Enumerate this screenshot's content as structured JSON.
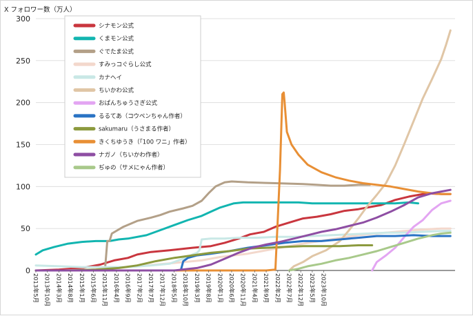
{
  "chart_data": {
    "type": "line",
    "ylabel": "X フォロワー数（万人）",
    "ylim": [
      0,
      300
    ],
    "yticks": [
      0,
      50,
      100,
      150,
      200,
      250,
      300
    ],
    "grid": "horizontal",
    "legend_position": "top-left",
    "x_tick_labels": [
      "2013年5月",
      "2013年10月",
      "2014年3月",
      "2014年8月",
      "2015年1月",
      "2015年6月",
      "2015年11月",
      "2016年4月",
      "2016年9月",
      "2017年2月",
      "2017年7月",
      "2017年12月",
      "2018年5月",
      "2018年10月",
      "2019年3月",
      "2019年8月",
      "2020年1月",
      "2020年6月",
      "2020年11月",
      "2021年4月",
      "2021年9月",
      "2022年2月",
      "2022年7月",
      "2022年12月",
      "2023年5月",
      "2023年10月"
    ],
    "x_start": "2013-05",
    "series": [
      {
        "name": "シナモン公式",
        "color": "#c9363e",
        "points": [
          [
            0,
            0
          ],
          [
            10,
            1
          ],
          [
            20,
            3
          ],
          [
            28,
            7
          ],
          [
            34,
            12
          ],
          [
            40,
            15
          ],
          [
            44,
            19
          ],
          [
            50,
            22
          ],
          [
            58,
            24
          ],
          [
            68,
            27
          ],
          [
            76,
            29
          ],
          [
            82,
            33
          ],
          [
            88,
            38
          ],
          [
            93,
            43
          ],
          [
            99,
            46
          ],
          [
            104,
            52
          ],
          [
            110,
            57
          ],
          [
            116,
            62
          ],
          [
            122,
            64
          ],
          [
            128,
            67
          ],
          [
            134,
            71
          ],
          [
            140,
            73
          ],
          [
            146,
            76
          ],
          [
            150,
            78
          ],
          [
            156,
            84
          ],
          [
            162,
            88
          ],
          [
            166,
            90
          ],
          [
            170,
            92
          ],
          [
            176,
            91
          ],
          [
            180,
            91
          ]
        ]
      },
      {
        "name": "くまモン公式",
        "color": "#12b5b0",
        "points": [
          [
            0,
            19
          ],
          [
            3,
            24
          ],
          [
            8,
            28
          ],
          [
            14,
            32
          ],
          [
            20,
            34
          ],
          [
            26,
            35
          ],
          [
            32,
            35
          ],
          [
            36,
            37
          ],
          [
            40,
            38
          ],
          [
            48,
            42
          ],
          [
            54,
            48
          ],
          [
            60,
            54
          ],
          [
            66,
            60
          ],
          [
            72,
            65
          ],
          [
            76,
            70
          ],
          [
            80,
            75
          ],
          [
            86,
            80
          ],
          [
            90,
            81
          ],
          [
            96,
            81
          ],
          [
            102,
            81
          ],
          [
            108,
            81
          ],
          [
            114,
            81
          ],
          [
            120,
            80
          ],
          [
            126,
            80
          ],
          [
            132,
            80
          ],
          [
            138,
            80
          ],
          [
            144,
            80
          ],
          [
            150,
            80
          ],
          [
            156,
            80
          ],
          [
            162,
            81
          ],
          [
            166,
            80
          ]
        ]
      },
      {
        "name": "ぐでたま公式",
        "color": "#b3a088",
        "points": [
          [
            30,
            0
          ],
          [
            31,
            35
          ],
          [
            32,
            35
          ],
          [
            33,
            44
          ],
          [
            38,
            52
          ],
          [
            44,
            59
          ],
          [
            50,
            63
          ],
          [
            54,
            66
          ],
          [
            58,
            70
          ],
          [
            64,
            74
          ],
          [
            68,
            77
          ],
          [
            72,
            83
          ],
          [
            75,
            92
          ],
          [
            78,
            100
          ],
          [
            82,
            105
          ],
          [
            85,
            106
          ],
          [
            92,
            105
          ],
          [
            104,
            104
          ],
          [
            116,
            103
          ],
          [
            122,
            102
          ],
          [
            128,
            101
          ],
          [
            134,
            101
          ],
          [
            140,
            102
          ],
          [
            145,
            102
          ]
        ]
      },
      {
        "name": "すみっコぐらし公式",
        "color": "#f3d8cc",
        "points": [
          [
            0,
            0
          ],
          [
            12,
            0
          ],
          [
            24,
            1
          ],
          [
            36,
            3
          ],
          [
            48,
            6
          ],
          [
            60,
            9
          ],
          [
            72,
            12
          ],
          [
            80,
            16
          ],
          [
            92,
            20
          ],
          [
            104,
            26
          ],
          [
            116,
            32
          ],
          [
            128,
            37
          ],
          [
            140,
            42
          ],
          [
            152,
            45
          ],
          [
            164,
            48
          ],
          [
            176,
            50
          ],
          [
            180,
            50
          ]
        ]
      },
      {
        "name": "カナヘイ",
        "color": "#c9e8e6",
        "points": [
          [
            0,
            6
          ],
          [
            10,
            5
          ],
          [
            20,
            4
          ],
          [
            30,
            4
          ],
          [
            40,
            4
          ],
          [
            50,
            6
          ],
          [
            58,
            8
          ],
          [
            62,
            12
          ],
          [
            66,
            16
          ],
          [
            68,
            19
          ],
          [
            70,
            21
          ],
          [
            71,
            24
          ],
          [
            72,
            37
          ],
          [
            76,
            38
          ],
          [
            82,
            38
          ],
          [
            88,
            39
          ],
          [
            96,
            39
          ],
          [
            104,
            40
          ],
          [
            112,
            40
          ],
          [
            120,
            41
          ],
          [
            128,
            42
          ],
          [
            136,
            43
          ],
          [
            144,
            44
          ],
          [
            152,
            45
          ],
          [
            160,
            45
          ],
          [
            168,
            46
          ],
          [
            176,
            47
          ],
          [
            180,
            47
          ]
        ]
      },
      {
        "name": "ちいかわ公式",
        "color": "#e0c6a6",
        "points": [
          [
            110,
            0
          ],
          [
            112,
            5
          ],
          [
            116,
            10
          ],
          [
            120,
            17
          ],
          [
            126,
            24
          ],
          [
            132,
            35
          ],
          [
            136,
            48
          ],
          [
            140,
            62
          ],
          [
            144,
            77
          ],
          [
            148,
            90
          ],
          [
            152,
            104
          ],
          [
            156,
            125
          ],
          [
            160,
            151
          ],
          [
            164,
            178
          ],
          [
            168,
            205
          ],
          [
            172,
            228
          ],
          [
            176,
            252
          ],
          [
            178,
            268
          ],
          [
            180,
            286
          ]
        ]
      },
      {
        "name": "おぱんちゅうさぎ公式",
        "color": "#e3a5f2",
        "points": [
          [
            146,
            0
          ],
          [
            148,
            10
          ],
          [
            152,
            18
          ],
          [
            156,
            27
          ],
          [
            160,
            40
          ],
          [
            164,
            52
          ],
          [
            168,
            60
          ],
          [
            172,
            72
          ],
          [
            176,
            80
          ],
          [
            180,
            83
          ]
        ]
      },
      {
        "name": "るるてあ（コウペンちゃん作者）",
        "color": "#2a73c4",
        "points": [
          [
            0,
            0
          ],
          [
            30,
            0
          ],
          [
            62,
            0
          ],
          [
            63,
            1
          ],
          [
            64,
            11
          ],
          [
            66,
            15
          ],
          [
            70,
            18
          ],
          [
            76,
            20
          ],
          [
            84,
            23
          ],
          [
            92,
            27
          ],
          [
            100,
            30
          ],
          [
            108,
            33
          ],
          [
            116,
            35
          ],
          [
            124,
            35
          ],
          [
            132,
            37
          ],
          [
            140,
            39
          ],
          [
            148,
            41
          ],
          [
            156,
            41
          ],
          [
            164,
            42
          ],
          [
            172,
            41
          ],
          [
            180,
            41
          ]
        ]
      },
      {
        "name": "sakumaru（うさまる作者）",
        "color": "#8c9a3e",
        "points": [
          [
            0,
            0
          ],
          [
            14,
            0
          ],
          [
            26,
            1
          ],
          [
            36,
            3
          ],
          [
            44,
            6
          ],
          [
            52,
            11
          ],
          [
            60,
            15
          ],
          [
            68,
            18
          ],
          [
            76,
            21
          ],
          [
            84,
            23
          ],
          [
            92,
            26
          ],
          [
            100,
            27
          ],
          [
            108,
            28
          ],
          [
            116,
            29
          ],
          [
            124,
            29
          ],
          [
            132,
            29
          ],
          [
            140,
            30
          ],
          [
            146,
            30
          ]
        ]
      },
      {
        "name": "きくちゆうき（「100 ワニ」作者）",
        "color": "#e88f35",
        "points": [
          [
            0,
            0
          ],
          [
            50,
            0
          ],
          [
            100,
            0
          ],
          [
            104,
            1
          ],
          [
            105,
            60
          ],
          [
            106,
            120
          ],
          [
            107,
            210
          ],
          [
            107.6,
            212
          ],
          [
            108,
            200
          ],
          [
            109,
            165
          ],
          [
            111,
            150
          ],
          [
            114,
            138
          ],
          [
            118,
            126
          ],
          [
            124,
            117
          ],
          [
            130,
            111
          ],
          [
            136,
            107
          ],
          [
            142,
            104
          ],
          [
            148,
            102
          ],
          [
            154,
            100
          ],
          [
            160,
            97
          ],
          [
            166,
            94
          ],
          [
            172,
            92
          ],
          [
            176,
            91
          ],
          [
            180,
            91
          ]
        ]
      },
      {
        "name": "ナガノ（ちいかわ作者）",
        "color": "#8e4ea3",
        "points": [
          [
            0,
            0
          ],
          [
            40,
            0
          ],
          [
            60,
            0
          ],
          [
            70,
            3
          ],
          [
            76,
            7
          ],
          [
            82,
            14
          ],
          [
            88,
            21
          ],
          [
            94,
            27
          ],
          [
            100,
            31
          ],
          [
            106,
            34
          ],
          [
            112,
            38
          ],
          [
            118,
            42
          ],
          [
            124,
            46
          ],
          [
            130,
            49
          ],
          [
            136,
            53
          ],
          [
            142,
            57
          ],
          [
            148,
            63
          ],
          [
            154,
            70
          ],
          [
            160,
            78
          ],
          [
            166,
            87
          ],
          [
            172,
            92
          ],
          [
            176,
            94
          ],
          [
            180,
            96
          ]
        ]
      },
      {
        "name": "ぢゅの（サメにゃん作者）",
        "color": "#a8c98a",
        "points": [
          [
            110,
            0
          ],
          [
            114,
            2
          ],
          [
            118,
            5
          ],
          [
            124,
            8
          ],
          [
            130,
            12
          ],
          [
            136,
            15
          ],
          [
            142,
            19
          ],
          [
            148,
            23
          ],
          [
            154,
            28
          ],
          [
            160,
            33
          ],
          [
            166,
            38
          ],
          [
            172,
            42
          ],
          [
            176,
            44
          ],
          [
            180,
            45
          ]
        ]
      }
    ]
  }
}
